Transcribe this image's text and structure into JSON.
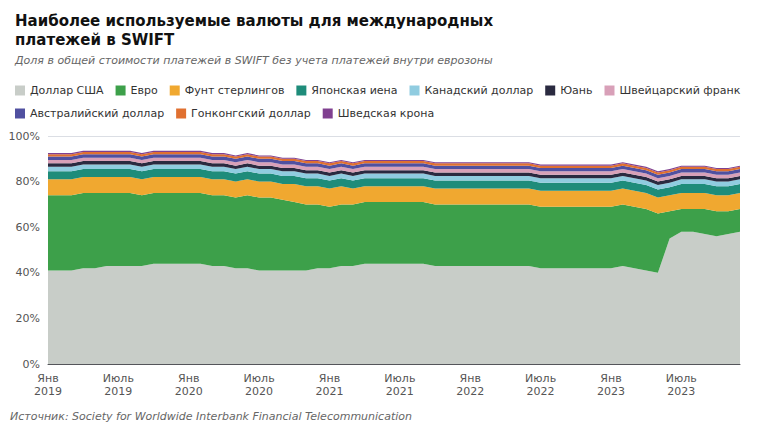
{
  "chart_data": {
    "type": "area",
    "stacked": true,
    "title": "Наиболее используемые валюты для международных\nплатежей в SWIFT",
    "subtitle": "Доля в общей стоимости платежей в SWIFT без учета платежей внутри еврозоны",
    "annotations": [
      "Источник: Society for Worldwide Interbank Financial Telecommunication"
    ],
    "legend": "top",
    "grid": true,
    "categories": [
      "Янв\n2019",
      null,
      null,
      null,
      null,
      null,
      "Июль\n2019",
      null,
      null,
      null,
      null,
      null,
      "Янв\n2020",
      null,
      null,
      null,
      null,
      null,
      "Июль\n2020",
      null,
      null,
      null,
      null,
      null,
      "Янв\n2021",
      null,
      null,
      null,
      null,
      null,
      "Июль\n2021",
      null,
      null,
      null,
      null,
      null,
      "Янв\n2022",
      null,
      null,
      null,
      null,
      null,
      "Июль\n2022",
      null,
      null,
      null,
      null,
      null,
      "Янв\n2023",
      null,
      null,
      null,
      null,
      null,
      "Июль\n2023",
      null,
      null,
      null,
      null,
      null
    ],
    "ylim": [
      0,
      100
    ],
    "yticks": [
      {
        "value": 0,
        "label": "0%"
      },
      {
        "value": 20,
        "label": "20%"
      },
      {
        "value": 40,
        "label": "40%"
      },
      {
        "value": 60,
        "label": "60%"
      },
      {
        "value": 80,
        "label": "80%"
      },
      {
        "value": 100,
        "label": "100%"
      }
    ],
    "series": [
      {
        "name": "Доллар США",
        "color": "#c8cdc8",
        "values": [
          41,
          41,
          41,
          42,
          42,
          43,
          43,
          43,
          43,
          44,
          44,
          44,
          44,
          44,
          43,
          43,
          42,
          42,
          41,
          41,
          41,
          41,
          41,
          42,
          42,
          43,
          43,
          44,
          44,
          44,
          44,
          44,
          44,
          43,
          43,
          43,
          43,
          43,
          43,
          43,
          43,
          43,
          42,
          42,
          42,
          42,
          42,
          42,
          42,
          43,
          42,
          41,
          40,
          55,
          58,
          58,
          57,
          56,
          57,
          58
        ]
      },
      {
        "name": "Евро",
        "color": "#3da04a",
        "values": [
          33,
          33,
          33,
          33,
          33,
          32,
          32,
          32,
          31,
          31,
          31,
          31,
          31,
          31,
          31,
          31,
          31,
          32,
          32,
          32,
          31,
          30,
          29,
          28,
          27,
          27,
          27,
          27,
          27,
          27,
          27,
          27,
          27,
          27,
          27,
          27,
          27,
          27,
          27,
          27,
          27,
          27,
          27,
          27,
          27,
          27,
          27,
          27,
          27,
          27,
          27,
          27,
          26,
          12,
          10,
          10,
          11,
          11,
          10,
          10
        ]
      },
      {
        "name": "Фунт стерлингов",
        "color": "#f0a830",
        "values": [
          7,
          7,
          7,
          7,
          7,
          7,
          7,
          7,
          7,
          7,
          7,
          7,
          7,
          7,
          7,
          7,
          7,
          7,
          7,
          7,
          7,
          8,
          8,
          8,
          8,
          8,
          7,
          7,
          7,
          7,
          7,
          7,
          7,
          7,
          7,
          7,
          7,
          7,
          7,
          7,
          7,
          7,
          7,
          7,
          7,
          7,
          7,
          7,
          7,
          7,
          7,
          7,
          7,
          7,
          7,
          7,
          7,
          7,
          7,
          7
        ]
      },
      {
        "name": "Японская иена",
        "color": "#1e8c7a",
        "values": [
          3.5,
          3.5,
          3.5,
          3.5,
          3.5,
          3.5,
          3.5,
          3.5,
          3.5,
          3.5,
          3.5,
          3.5,
          3.5,
          3.5,
          3.5,
          3.5,
          3.5,
          3.5,
          3.5,
          3.5,
          3.5,
          3.5,
          3.5,
          3.5,
          3.5,
          3.5,
          3.5,
          3.5,
          3.5,
          3.5,
          3.5,
          3.5,
          3.5,
          3.5,
          3.5,
          3.5,
          3.5,
          3.5,
          3.5,
          3.5,
          3.5,
          3.5,
          3.5,
          3.5,
          3.5,
          3.5,
          3.5,
          3.5,
          3.5,
          3.5,
          3.5,
          3.5,
          3.5,
          3.5,
          4,
          4,
          4,
          4,
          4,
          4
        ]
      },
      {
        "name": "Канадский доллар",
        "color": "#90cce0",
        "values": [
          2,
          2,
          2,
          2,
          2,
          2,
          2,
          2,
          2,
          2,
          2,
          2,
          2,
          2,
          2,
          2,
          2,
          2,
          2,
          2,
          2,
          2,
          2,
          2,
          2,
          2,
          2,
          2,
          2,
          2,
          2,
          2,
          2,
          2,
          2,
          2,
          2,
          2,
          2,
          2,
          2,
          2,
          2,
          2,
          2,
          2,
          2,
          2,
          2,
          2,
          2,
          2,
          2,
          2,
          2,
          2,
          2,
          2,
          2,
          2
        ]
      },
      {
        "name": "Юань",
        "color": "#2a2a40",
        "values": [
          1.5,
          1.5,
          1.5,
          1.5,
          1.5,
          1.5,
          1.5,
          1.5,
          1.5,
          1.5,
          1.5,
          1.5,
          1.5,
          1.5,
          1.5,
          1.5,
          1.5,
          1.5,
          1.5,
          1.5,
          1.5,
          1.5,
          1.5,
          1.5,
          1.5,
          1.5,
          1.5,
          1.5,
          1.5,
          1.5,
          1.5,
          1.5,
          1.5,
          1.5,
          1.5,
          1.5,
          1.5,
          1.5,
          1.5,
          1.5,
          1.5,
          1.5,
          1.5,
          1.5,
          1.5,
          1.5,
          1.5,
          1.5,
          1.5,
          1.5,
          1.5,
          1.5,
          1.5,
          1.5,
          1.5,
          1.5,
          1.5,
          1.5,
          1.5,
          1.5
        ]
      },
      {
        "name": "Швейцарский франк",
        "color": "#d8a0b8",
        "values": [
          1.5,
          1.5,
          1.5,
          1.5,
          1.5,
          1.5,
          1.5,
          1.5,
          1.5,
          1.5,
          1.5,
          1.5,
          1.5,
          1.5,
          1.5,
          1.5,
          1.5,
          1.5,
          1.5,
          1.5,
          1.5,
          1.5,
          1.5,
          1.5,
          1.5,
          1.5,
          1.5,
          1.5,
          1.5,
          1.5,
          1.5,
          1.5,
          1.5,
          1.5,
          1.5,
          1.5,
          1.5,
          1.5,
          1.5,
          1.5,
          1.5,
          1.5,
          1.5,
          1.5,
          1.5,
          1.5,
          1.5,
          1.5,
          1.5,
          1.5,
          1.5,
          1.5,
          1.5,
          1.5,
          1.5,
          1.5,
          1.5,
          1.5,
          1.5,
          1.5
        ]
      },
      {
        "name": "Австралийский доллар",
        "color": "#5050a0",
        "values": [
          1.5,
          1.5,
          1.5,
          1.5,
          1.5,
          1.5,
          1.5,
          1.5,
          1.5,
          1.5,
          1.5,
          1.5,
          1.5,
          1.5,
          1.5,
          1.5,
          1.5,
          1.5,
          1.5,
          1.5,
          1.5,
          1.5,
          1.5,
          1.5,
          1.5,
          1.5,
          1.5,
          1.5,
          1.5,
          1.5,
          1.5,
          1.5,
          1.5,
          1.5,
          1.5,
          1.5,
          1.5,
          1.5,
          1.5,
          1.5,
          1.5,
          1.5,
          1.5,
          1.5,
          1.5,
          1.5,
          1.5,
          1.5,
          1.5,
          1.5,
          1.5,
          1.5,
          1.5,
          1.5,
          1.5,
          1.5,
          1.5,
          1.5,
          1.5,
          1.5
        ]
      },
      {
        "name": "Гонконгский доллар",
        "color": "#e07030",
        "values": [
          1,
          1,
          1,
          1,
          1,
          1,
          1,
          1,
          1,
          1,
          1,
          1,
          1,
          1,
          1,
          1,
          1,
          1,
          1,
          1,
          1,
          1,
          1,
          1,
          1,
          1,
          1,
          1,
          1,
          1,
          1,
          1,
          1,
          1,
          1,
          1,
          1,
          1,
          1,
          1,
          1,
          1,
          1,
          1,
          1,
          1,
          1,
          1,
          1,
          1,
          1,
          1,
          1,
          1,
          1,
          1,
          1,
          1,
          1,
          1
        ]
      },
      {
        "name": "Шведская крона",
        "color": "#804090",
        "values": [
          0.5,
          0.5,
          0.5,
          0.5,
          0.5,
          0.5,
          0.5,
          0.5,
          0.5,
          0.5,
          0.5,
          0.5,
          0.5,
          0.5,
          0.5,
          0.5,
          0.5,
          0.5,
          0.5,
          0.5,
          0.5,
          0.5,
          0.5,
          0.5,
          0.5,
          0.5,
          0.5,
          0.5,
          0.5,
          0.5,
          0.5,
          0.5,
          0.5,
          0.5,
          0.5,
          0.5,
          0.5,
          0.5,
          0.5,
          0.5,
          0.5,
          0.5,
          0.5,
          0.5,
          0.5,
          0.5,
          0.5,
          0.5,
          0.5,
          0.5,
          0.5,
          0.5,
          0.5,
          0.5,
          0.5,
          0.5,
          0.5,
          0.5,
          0.5,
          0.5
        ]
      }
    ]
  }
}
